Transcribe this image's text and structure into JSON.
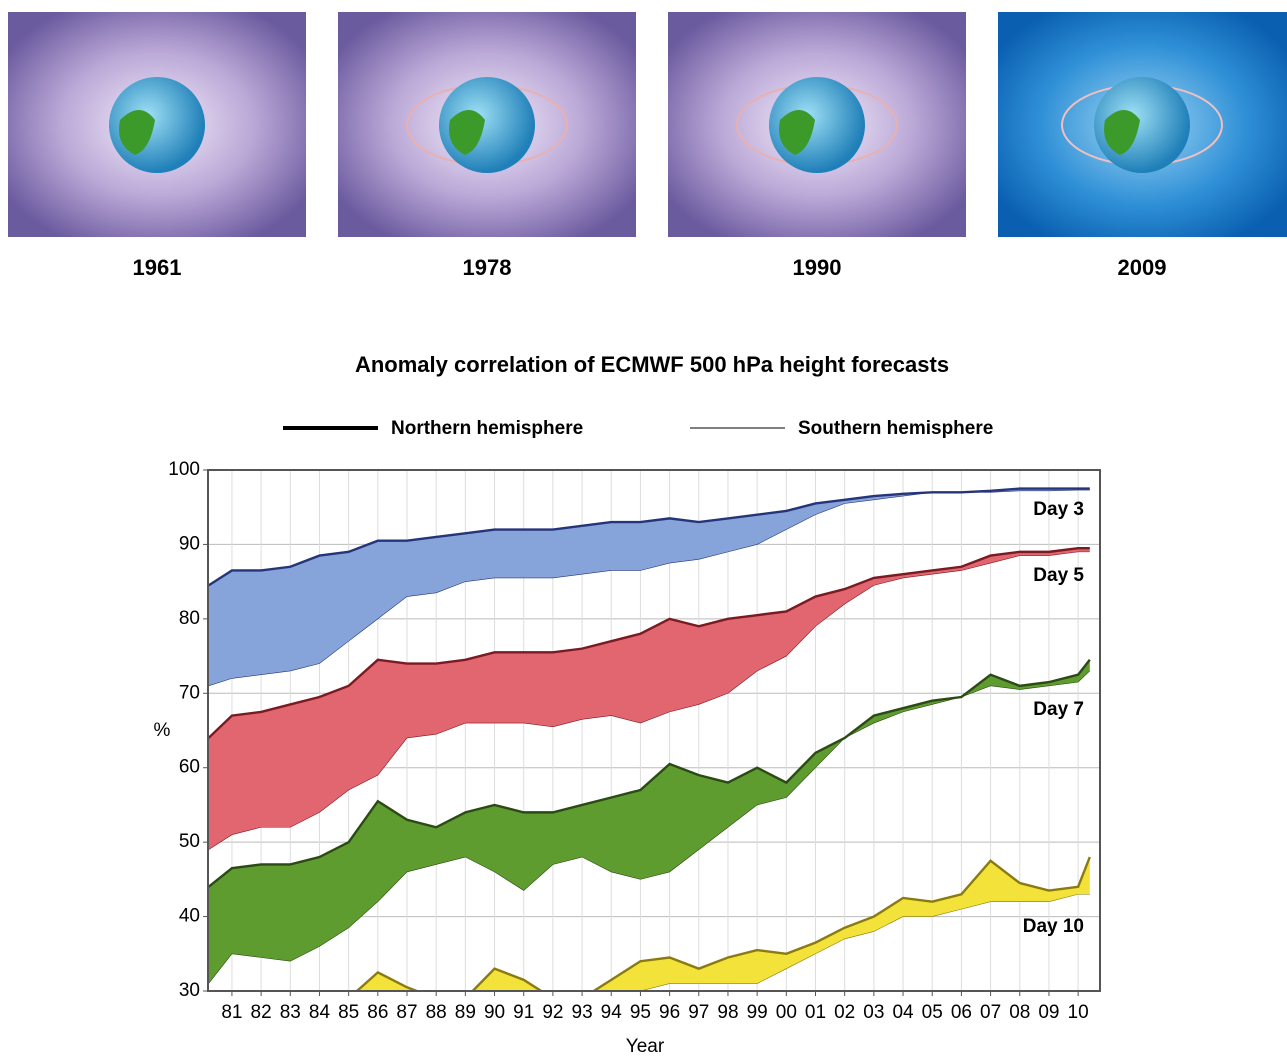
{
  "images": [
    {
      "label": "1961"
    },
    {
      "label": "1978"
    },
    {
      "label": "1990"
    },
    {
      "label": "2009"
    }
  ],
  "chart_data": {
    "type": "band",
    "title": "Anomaly correlation of ECMWF 500 hPa height forecasts",
    "legend": [
      {
        "name": "Northern hemisphere",
        "width": 4
      },
      {
        "name": "Southern hemisphere",
        "width": 1
      }
    ],
    "x_label": "Year",
    "y_label": "%",
    "x": [
      1980.2,
      1981,
      1982,
      1983,
      1984,
      1985,
      1986,
      1987,
      1988,
      1989,
      1990,
      1991,
      1992,
      1993,
      1994,
      1995,
      1996,
      1997,
      1998,
      1999,
      2000,
      2001,
      2002,
      2003,
      2004,
      2005,
      2006,
      2007,
      2008,
      2009,
      2010,
      2010.4
    ],
    "bands": [
      {
        "label": "Day 3",
        "color": "#86a4da",
        "line": "#26347a",
        "nh": [
          84.5,
          86.5,
          86.5,
          87,
          88.5,
          89,
          90.5,
          90.5,
          91,
          91.5,
          92,
          92,
          92,
          92.5,
          93,
          93,
          93.5,
          93,
          93.5,
          94,
          94.5,
          95.5,
          96,
          96.5,
          96.8,
          97,
          97,
          97.2,
          97.5,
          97.5,
          97.5,
          97.5
        ],
        "sh": [
          71,
          72,
          72.5,
          73,
          74,
          77,
          80,
          83,
          83.5,
          85,
          85.5,
          85.5,
          85.5,
          86,
          86.5,
          86.5,
          87.5,
          88,
          89,
          90,
          92,
          94,
          95.5,
          96,
          96.5,
          97,
          97,
          97,
          97.2,
          97.2,
          97.3,
          97.3
        ]
      },
      {
        "label": "Day 5",
        "color": "#e2666f",
        "line": "#7a1a22",
        "nh": [
          64,
          67,
          67.5,
          68.5,
          69.5,
          71,
          74.5,
          74,
          74,
          74.5,
          75.5,
          75.5,
          75.5,
          76,
          77,
          78,
          80,
          79,
          80,
          80.5,
          81,
          83,
          84,
          85.5,
          86,
          86.5,
          87,
          88.5,
          89,
          89,
          89.5,
          89.5
        ],
        "sh": [
          49,
          51,
          52,
          52,
          54,
          57,
          59,
          64,
          64.5,
          66,
          66,
          66,
          65.5,
          66.5,
          67,
          66,
          67.5,
          68.5,
          70,
          73,
          75,
          79,
          82,
          84.5,
          85.5,
          86,
          86.5,
          87.5,
          88.5,
          88.5,
          89,
          89
        ]
      },
      {
        "label": "Day 7",
        "color": "#5f9c30",
        "line": "#2b4a14",
        "nh": [
          44,
          46.5,
          47,
          47,
          48,
          50,
          55.5,
          53,
          52,
          54,
          55,
          54,
          54,
          55,
          56,
          57,
          60.5,
          59,
          58,
          60,
          58,
          62,
          64,
          67,
          68,
          69,
          69.5,
          72.5,
          71,
          71.5,
          72.5,
          74.5
        ],
        "sh": [
          31,
          35,
          34.5,
          34,
          36,
          38.5,
          42,
          46,
          47,
          48,
          46,
          43.5,
          47,
          48,
          46,
          45,
          46,
          49,
          52,
          55,
          56,
          60,
          64,
          66,
          67.5,
          68.5,
          69.5,
          71,
          70.5,
          71,
          71.5,
          73
        ]
      },
      {
        "label": "Day 10",
        "color": "#f2e23a",
        "line": "#8a7a10",
        "nh": [
          29,
          29,
          29,
          29,
          29,
          29,
          32.5,
          30.5,
          29,
          29,
          33,
          31.5,
          29,
          29,
          31.5,
          34,
          34.5,
          33,
          34.5,
          35.5,
          35,
          36.5,
          38.5,
          40,
          42.5,
          42,
          43,
          47.5,
          44.5,
          43.5,
          44,
          48
        ],
        "sh": [
          28,
          28,
          28,
          28,
          28,
          28,
          30,
          28,
          28,
          28,
          30,
          28,
          28,
          28,
          28,
          30,
          31,
          31,
          31,
          31,
          33,
          35,
          37,
          38,
          40,
          40,
          41,
          42,
          42,
          42,
          43,
          43
        ]
      }
    ],
    "xlim": [
      1980.18,
      2010.75
    ],
    "ylim": [
      30,
      100
    ],
    "yticks": [
      30,
      40,
      50,
      60,
      70,
      80,
      90,
      100
    ],
    "xticks": [
      {
        "value": 1981,
        "label": "81"
      },
      {
        "value": 1982,
        "label": "82"
      },
      {
        "value": 1983,
        "label": "83"
      },
      {
        "value": 1984,
        "label": "84"
      },
      {
        "value": 1985,
        "label": "85"
      },
      {
        "value": 1986,
        "label": "86"
      },
      {
        "value": 1987,
        "label": "87"
      },
      {
        "value": 1988,
        "label": "88"
      },
      {
        "value": 1989,
        "label": "89"
      },
      {
        "value": 1990,
        "label": "90"
      },
      {
        "value": 1991,
        "label": "91"
      },
      {
        "value": 1992,
        "label": "92"
      },
      {
        "value": 1993,
        "label": "93"
      },
      {
        "value": 1994,
        "label": "94"
      },
      {
        "value": 1995,
        "label": "95"
      },
      {
        "value": 1996,
        "label": "96"
      },
      {
        "value": 1997,
        "label": "97"
      },
      {
        "value": 1998,
        "label": "98"
      },
      {
        "value": 1999,
        "label": "99"
      },
      {
        "value": 2000,
        "label": "00"
      },
      {
        "value": 2001,
        "label": "01"
      },
      {
        "value": 2002,
        "label": "02"
      },
      {
        "value": 2003,
        "label": "03"
      },
      {
        "value": 2004,
        "label": "04"
      },
      {
        "value": 2005,
        "label": "05"
      },
      {
        "value": 2006,
        "label": "06"
      },
      {
        "value": 2007,
        "label": "07"
      },
      {
        "value": 2008,
        "label": "08"
      },
      {
        "value": 2009,
        "label": "09"
      },
      {
        "value": 2010,
        "label": "10"
      }
    ],
    "grid": true
  }
}
